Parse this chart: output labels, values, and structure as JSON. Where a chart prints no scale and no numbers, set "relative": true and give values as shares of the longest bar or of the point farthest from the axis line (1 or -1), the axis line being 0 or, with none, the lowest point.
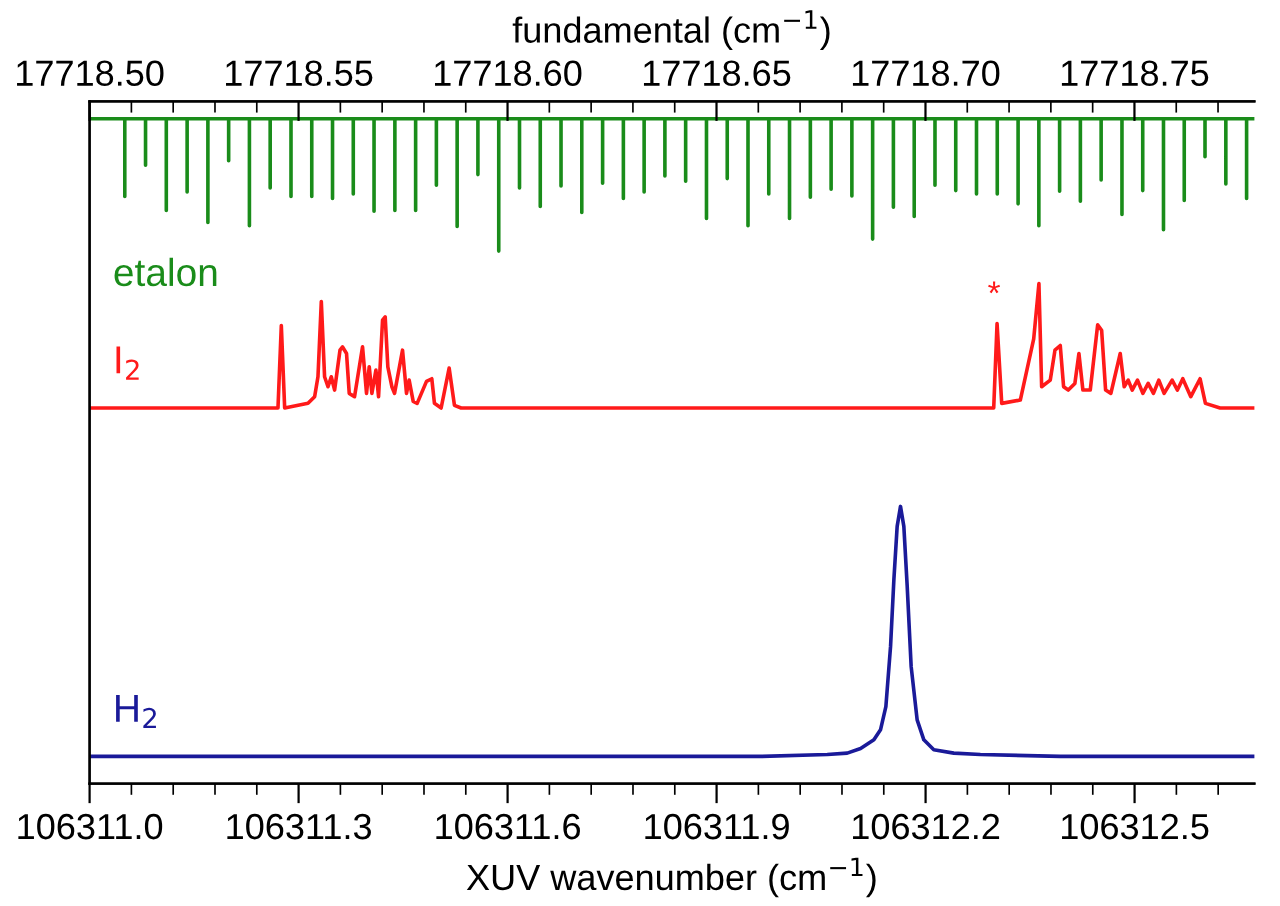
{
  "chart_data": {
    "type": "line",
    "relative": true,
    "xlabel": "XUV wavenumber (cm$^{−1}$)",
    "x2label": "fundamental (cm$^{−1}$)",
    "xlim": [
      106311.0,
      106312.672
    ],
    "xticks": [
      {
        "value": 106311.0,
        "label": "106311.0"
      },
      {
        "value": 106311.06,
        "label": null
      },
      {
        "value": 106311.12,
        "label": null
      },
      {
        "value": 106311.18,
        "label": null
      },
      {
        "value": 106311.24,
        "label": null
      },
      106311.3,
      {
        "value": 106311.36,
        "label": null
      },
      {
        "value": 106311.42,
        "label": null
      },
      {
        "value": 106311.48,
        "label": null
      },
      {
        "value": 106311.54,
        "label": null
      },
      106311.6,
      {
        "value": 106311.66,
        "label": null
      },
      {
        "value": 106311.72,
        "label": null
      },
      {
        "value": 106311.78,
        "label": null
      },
      {
        "value": 106311.84,
        "label": null
      },
      106311.9,
      {
        "value": 106311.96,
        "label": null
      },
      {
        "value": 106312.02,
        "label": null
      },
      {
        "value": 106312.08,
        "label": null
      },
      {
        "value": 106312.14,
        "label": null
      },
      106312.2,
      {
        "value": 106312.26,
        "label": null
      },
      {
        "value": 106312.32,
        "label": null
      },
      {
        "value": 106312.38,
        "label": null
      },
      {
        "value": 106312.44,
        "label": null
      },
      106312.5,
      {
        "value": 106312.56,
        "label": null
      },
      {
        "value": 106312.62,
        "label": null
      }
    ],
    "x2lim": [
      17718.5,
      17718.7787
    ],
    "x2ticks": [
      {
        "value": 17718.5,
        "label": "17718.50"
      },
      {
        "value": 17718.51,
        "label": null
      },
      {
        "value": 17718.52,
        "label": null
      },
      {
        "value": 17718.53,
        "label": null
      },
      {
        "value": 17718.54,
        "label": null
      },
      {
        "value": 17718.55,
        "label": "17718.55"
      },
      {
        "value": 17718.56,
        "label": null
      },
      {
        "value": 17718.57,
        "label": null
      },
      {
        "value": 17718.58,
        "label": null
      },
      {
        "value": 17718.59,
        "label": null
      },
      {
        "value": 17718.6,
        "label": "17718.60"
      },
      {
        "value": 17718.61,
        "label": null
      },
      {
        "value": 17718.62,
        "label": null
      },
      {
        "value": 17718.63,
        "label": null
      },
      {
        "value": 17718.64,
        "label": null
      },
      {
        "value": 17718.65,
        "label": "17718.65"
      },
      {
        "value": 17718.66,
        "label": null
      },
      {
        "value": 17718.67,
        "label": null
      },
      {
        "value": 17718.68,
        "label": null
      },
      {
        "value": 17718.69,
        "label": null
      },
      {
        "value": 17718.7,
        "label": "17718.70"
      },
      {
        "value": 17718.71,
        "label": null
      },
      {
        "value": 17718.72,
        "label": null
      },
      {
        "value": 17718.73,
        "label": null
      },
      {
        "value": 17718.74,
        "label": null
      },
      {
        "value": 17718.75,
        "label": "17718.75"
      },
      {
        "value": 17718.76,
        "label": null
      },
      {
        "value": 17718.77,
        "label": null
      }
    ],
    "annotations": [
      "*"
    ],
    "series": [
      {
        "name": "etalon",
        "color": "#1a8c1a",
        "x": [
          106311.0,
          106311.0505,
          106311.0505,
          106311.0505,
          106311.0803,
          106311.0803,
          106311.0803,
          106311.1101,
          106311.1101,
          106311.1101,
          106311.14,
          106311.14,
          106311.14,
          106311.1698,
          106311.1698,
          106311.1698,
          106311.1996,
          106311.1996,
          106311.1996,
          106311.2294,
          106311.2294,
          106311.2294,
          106311.2592,
          106311.2592,
          106311.2592,
          106311.2891,
          106311.2891,
          106311.2891,
          106311.3189,
          106311.3189,
          106311.3189,
          106311.3487,
          106311.3487,
          106311.3487,
          106311.3785,
          106311.3785,
          106311.3785,
          106311.4083,
          106311.4083,
          106311.4083,
          106311.4382,
          106311.4382,
          106311.4382,
          106311.468,
          106311.468,
          106311.468,
          106311.4978,
          106311.4978,
          106311.4978,
          106311.5276,
          106311.5276,
          106311.5276,
          106311.5574,
          106311.5574,
          106311.5574,
          106311.5873,
          106311.5873,
          106311.5873,
          106311.6171,
          106311.6171,
          106311.6171,
          106311.6469,
          106311.6469,
          106311.6469,
          106311.6767,
          106311.6767,
          106311.6767,
          106311.7065,
          106311.7065,
          106311.7065,
          106311.7364,
          106311.7364,
          106311.7364,
          106311.7662,
          106311.7662,
          106311.7662,
          106311.796,
          106311.796,
          106311.796,
          106311.8258,
          106311.8258,
          106311.8258,
          106311.8556,
          106311.8556,
          106311.8556,
          106311.8855,
          106311.8855,
          106311.8855,
          106311.9153,
          106311.9153,
          106311.9153,
          106311.9451,
          106311.9451,
          106311.9451,
          106311.9749,
          106311.9749,
          106311.9749,
          106312.0047,
          106312.0047,
          106312.0047,
          106312.0346,
          106312.0346,
          106312.0346,
          106312.0644,
          106312.0644,
          106312.0644,
          106312.0942,
          106312.0942,
          106312.0942,
          106312.124,
          106312.124,
          106312.124,
          106312.1538,
          106312.1538,
          106312.1538,
          106312.1837,
          106312.1837,
          106312.1837,
          106312.2135,
          106312.2135,
          106312.2135,
          106312.2433,
          106312.2433,
          106312.2433,
          106312.2731,
          106312.2731,
          106312.2731,
          106312.3029,
          106312.3029,
          106312.3029,
          106312.3328,
          106312.3328,
          106312.3328,
          106312.3626,
          106312.3626,
          106312.3626,
          106312.3924,
          106312.3924,
          106312.3924,
          106312.4222,
          106312.4222,
          106312.4222,
          106312.452,
          106312.452,
          106312.452,
          106312.4819,
          106312.4819,
          106312.4819,
          106312.5117,
          106312.5117,
          106312.5117,
          106312.5415,
          106312.5415,
          106312.5415,
          106312.5713,
          106312.5713,
          106312.5713,
          106312.6011,
          106312.6011,
          106312.6011,
          106312.631,
          106312.631,
          106312.631,
          106312.6608,
          106312.6608,
          106312.6608,
          106312.672
        ],
        "values": [
          1,
          1,
          0.883,
          1,
          1,
          0.93,
          1,
          1,
          0.862,
          1,
          1,
          0.89,
          1,
          1,
          0.844,
          1,
          1,
          0.937,
          1,
          1,
          0.839,
          1,
          1,
          0.896,
          1,
          1,
          0.883,
          1,
          1,
          0.883,
          1,
          1,
          0.88,
          1,
          1,
          0.887,
          1,
          1,
          0.861,
          1,
          1,
          0.862,
          1,
          1,
          0.862,
          1,
          1,
          0.9,
          1,
          1,
          0.838,
          1,
          1,
          0.916,
          1,
          1,
          0.801,
          1,
          1,
          0.896,
          1,
          1,
          0.868,
          1,
          1,
          0.899,
          1,
          1,
          0.859,
          1,
          1,
          0.903,
          1,
          1,
          0.88,
          1,
          1,
          0.89,
          1,
          1,
          0.914,
          1,
          1,
          0.906,
          1,
          1,
          0.85,
          1,
          1,
          0.91,
          1,
          1,
          0.839,
          1,
          1,
          0.887,
          1,
          1,
          0.85,
          1,
          1,
          0.882,
          1,
          1,
          0.894,
          1,
          1,
          0.884,
          1,
          1,
          0.819,
          1,
          1,
          0.867,
          1,
          1,
          0.853,
          1,
          1,
          0.9,
          1,
          1,
          0.892,
          1,
          1,
          0.887,
          1,
          1,
          0.887,
          1,
          1,
          0.872,
          1,
          1,
          0.839,
          1,
          1,
          0.891,
          1,
          1,
          0.876,
          1,
          1,
          0.908,
          1,
          1,
          0.856,
          1,
          1,
          0.892,
          1,
          1,
          0.833,
          1,
          1,
          0.877,
          1,
          1,
          0.943,
          1,
          1,
          0.902,
          1,
          1,
          0.88,
          1,
          1
        ]
      },
      {
        "name": "I$_{2}$",
        "color": "#ff1a1a",
        "x": [
          106311.0,
          106311.2704,
          106311.2752,
          106311.28,
          106311.3135,
          106311.323,
          106311.3278,
          106311.3326,
          106311.3373,
          106311.3422,
          106311.3469,
          106311.3517,
          106311.3594,
          106311.3631,
          106311.3688,
          106311.3727,
          106311.3803,
          106311.3918,
          106311.3975,
          106311.4014,
          106311.4052,
          106311.411,
          106311.4148,
          106311.4205,
          106311.4243,
          106311.4281,
          106311.4339,
          106311.4377,
          106311.4492,
          106311.4549,
          106311.4587,
          106311.4645,
          106311.4702,
          106311.4836,
          106311.4912,
          106311.495,
          106311.5046,
          106311.5161,
          106311.5237,
          106311.5333,
          106312.2978,
          106312.3026,
          106312.3093,
          106312.336,
          106312.3552,
          106312.3627,
          106312.3666,
          106312.379,
          106312.3857,
          106312.3933,
          106312.3981,
          106312.4048,
          106312.4143,
          106312.4201,
          106312.4258,
          106312.4364,
          106312.447,
          106312.4527,
          106312.4584,
          106312.466,
          106312.4794,
          106312.4851,
          106312.4908,
          106312.4966,
          106312.5042,
          106312.5119,
          106312.5195,
          106312.5271,
          106312.5348,
          106312.5424,
          106312.5539,
          106312.5615,
          106312.5692,
          106312.5807,
          106312.594,
          106312.6017,
          106312.6227,
          106312.672
        ],
        "values": [
          0.565,
          0.565,
          0.689,
          0.565,
          0.572,
          0.582,
          0.612,
          0.725,
          0.612,
          0.597,
          0.612,
          0.592,
          0.652,
          0.657,
          0.647,
          0.587,
          0.582,
          0.657,
          0.587,
          0.627,
          0.587,
          0.622,
          0.582,
          0.697,
          0.702,
          0.627,
          0.597,
          0.587,
          0.652,
          0.587,
          0.607,
          0.575,
          0.572,
          0.605,
          0.609,
          0.572,
          0.565,
          0.625,
          0.569,
          0.565,
          0.565,
          0.692,
          0.572,
          0.577,
          0.669,
          0.752,
          0.597,
          0.607,
          0.652,
          0.659,
          0.597,
          0.592,
          0.602,
          0.647,
          0.592,
          0.592,
          0.69,
          0.682,
          0.592,
          0.587,
          0.647,
          0.597,
          0.607,
          0.592,
          0.607,
          0.587,
          0.602,
          0.587,
          0.607,
          0.587,
          0.607,
          0.592,
          0.609,
          0.582,
          0.609,
          0.572,
          0.565,
          0.565
        ]
      },
      {
        "name": "H$_{2}$",
        "color": "#1a1a99",
        "x": [
          106311.0,
          106311.9633,
          106312.0589,
          106312.0875,
          106312.1067,
          106312.1258,
          106312.1353,
          106312.143,
          106312.1497,
          106312.1545,
          106312.1592,
          106312.164,
          106312.1688,
          106312.1736,
          106312.1793,
          106312.1879,
          106312.1975,
          106312.2118,
          106312.2405,
          106312.2787,
          106312.3933,
          106312.672
        ],
        "values": [
          0.041,
          0.041,
          0.044,
          0.046,
          0.053,
          0.066,
          0.081,
          0.116,
          0.206,
          0.307,
          0.387,
          0.417,
          0.387,
          0.297,
          0.176,
          0.096,
          0.066,
          0.051,
          0.046,
          0.044,
          0.041,
          0.041
        ]
      }
    ]
  }
}
